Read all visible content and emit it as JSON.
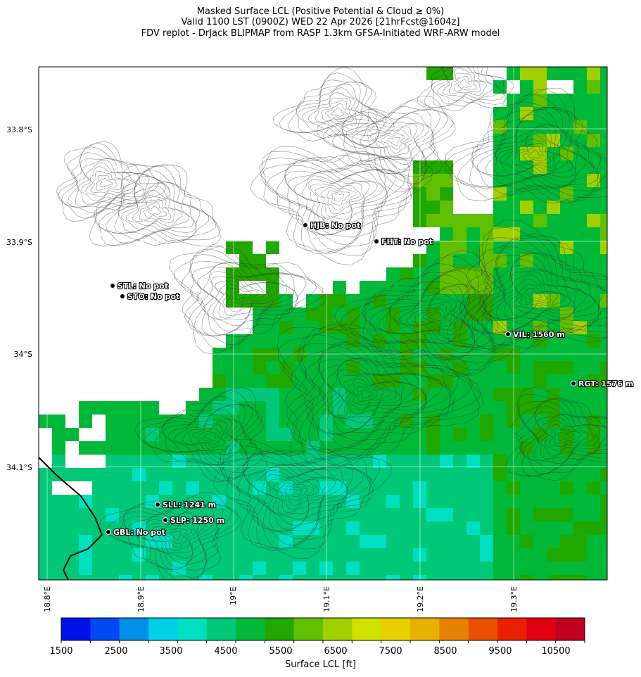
{
  "header": {
    "line1": "Masked Surface LCL (Positive Potential & Cloud ≥ 0%)",
    "line2": "Valid 1100 LST (0900Z) WED 22 Apr 2026 [21hrFcst@1604z]",
    "line3": "FDV replot - DrJack BLIPMAP from RASP 1.3km GFSA-Initiated WRF-ARW model"
  },
  "axes": {
    "lat_labels": [
      "33.8°S",
      "33.9°S",
      "34°S",
      "34.1°S"
    ],
    "lon_labels": [
      "18.8°E",
      "18.9°E",
      "19°E",
      "19.1°E",
      "19.2°E",
      "19.3°E"
    ]
  },
  "stations": [
    {
      "label": "HJB: No pot"
    },
    {
      "label": "FHT: No pot"
    },
    {
      "label": "STL: No pot"
    },
    {
      "label": "STO: No pot"
    },
    {
      "label": "VIL: 1560 m"
    },
    {
      "label": "RGT: 1576 m"
    },
    {
      "label": "SLL: 1241 m"
    },
    {
      "label": "SLP: 1250 m"
    },
    {
      "label": "GBL: No pot"
    }
  ],
  "colorbar": {
    "title": "Surface LCL [ft]",
    "tick_labels": [
      "1500",
      "2500",
      "3500",
      "4500",
      "5500",
      "6500",
      "7500",
      "8500",
      "9500",
      "10500"
    ],
    "colors": [
      "#0010e8",
      "#0048f0",
      "#0090e8",
      "#00d0e8",
      "#00e0c0",
      "#00c878",
      "#00b838",
      "#20a800",
      "#60c000",
      "#a0d000",
      "#d0e000",
      "#e8d000",
      "#e8b000",
      "#e88000",
      "#e85000",
      "#e82000",
      "#e00010",
      "#c00020"
    ]
  },
  "chart_data": {
    "type": "heatmap",
    "title": "Masked Surface LCL (Positive Potential & Cloud ≥ 0%)",
    "colorbar_label": "Surface LCL [ft]",
    "colorbar_range": [
      1500,
      11000
    ],
    "colorbar_step": 500,
    "lat_ticks": [
      -33.8,
      -33.9,
      -34.0,
      -34.1
    ],
    "lon_ticks": [
      18.8,
      18.9,
      19.0,
      19.1,
      19.2,
      19.3
    ],
    "stations": [
      {
        "name": "HJB",
        "lon": 19.08,
        "lat": -33.91,
        "value": "No pot"
      },
      {
        "name": "FHT",
        "lon": 19.155,
        "lat": -33.925,
        "value": "No pot"
      },
      {
        "name": "STL",
        "lon": 18.875,
        "lat": -33.96,
        "value": "No pot"
      },
      {
        "name": "STO",
        "lon": 18.885,
        "lat": -33.97,
        "value": "No pot"
      },
      {
        "name": "VIL",
        "lon": 19.295,
        "lat": -33.99,
        "value": "1560 m"
      },
      {
        "name": "RGT",
        "lon": 19.365,
        "lat": -34.035,
        "value": "1576 m"
      },
      {
        "name": "SLL",
        "lon": 18.92,
        "lat": -34.135,
        "value": "1241 m"
      },
      {
        "name": "SLP",
        "lon": 18.93,
        "lat": -34.15,
        "value": "1250 m"
      },
      {
        "name": "GBL",
        "lon": 18.875,
        "lat": -34.16,
        "value": "No pot"
      }
    ]
  }
}
